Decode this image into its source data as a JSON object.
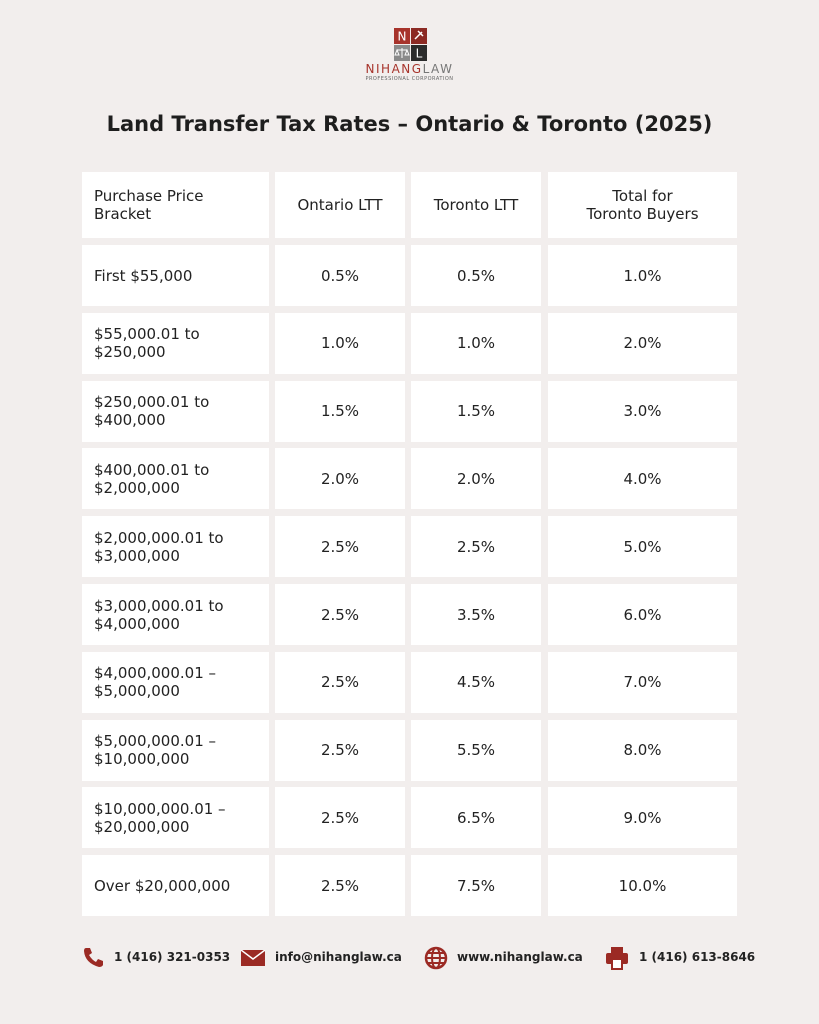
{
  "logo": {
    "letters": [
      "N",
      "L"
    ],
    "brand_primary": "NIHANG",
    "brand_secondary": "LAW",
    "tagline": "PROFESSIONAL CORPORATION"
  },
  "header": {
    "title": "Land Transfer Tax Rates – Ontario & Toronto (2025)"
  },
  "table": {
    "columns": [
      "Purchase Price\nBracket",
      "Ontario LTT",
      "Toronto LTT",
      "Total for\nToronto Buyers"
    ],
    "rows": [
      [
        "First $55,000",
        "0.5%",
        "0.5%",
        "1.0%"
      ],
      [
        "$55,000.01 to\n$250,000",
        "1.0%",
        "1.0%",
        "2.0%"
      ],
      [
        "$250,000.01 to\n$400,000",
        "1.5%",
        "1.5%",
        "3.0%"
      ],
      [
        "$400,000.01 to\n$2,000,000",
        "2.0%",
        "2.0%",
        "4.0%"
      ],
      [
        "$2,000,000.01 to\n$3,000,000",
        "2.5%",
        "2.5%",
        "5.0%"
      ],
      [
        "$3,000,000.01 to\n$4,000,000",
        "2.5%",
        "3.5%",
        "6.0%"
      ],
      [
        "$4,000,000.01 –\n$5,000,000",
        "2.5%",
        "4.5%",
        "7.0%"
      ],
      [
        "$5,000,000.01 –\n$10,000,000",
        "2.5%",
        "5.5%",
        "8.0%"
      ],
      [
        "$10,000,000.01 –\n$20,000,000",
        "2.5%",
        "6.5%",
        "9.0%"
      ],
      [
        "Over $20,000,000",
        "2.5%",
        "7.5%",
        "10.0%"
      ]
    ]
  },
  "footer": {
    "phone": "1 (416) 321-0353",
    "email": "info@nihanglaw.ca",
    "website": "www.nihanglaw.ca",
    "fax": "1 (416) 613-8646"
  }
}
